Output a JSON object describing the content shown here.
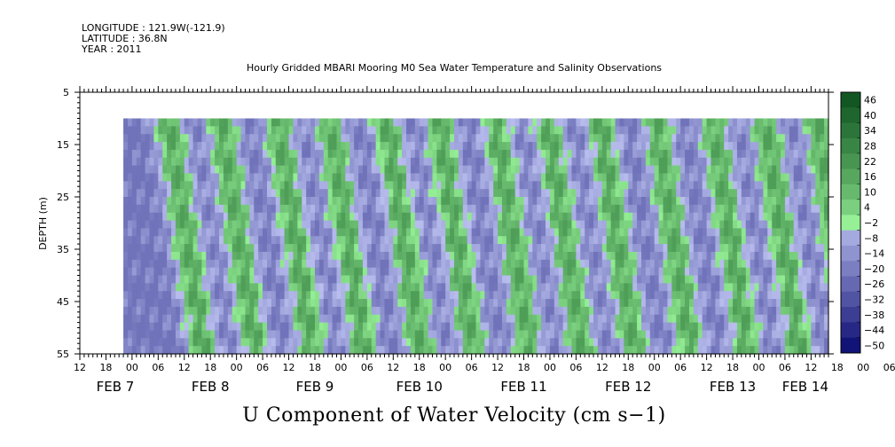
{
  "header": {
    "longitude": "LONGITUDE : 121.9W(-121.9)",
    "latitude": "LATITUDE : 36.8N",
    "year": "YEAR : 2011",
    "title": "Hourly Gridded MBARI Mooring M0 Sea Water Temperature and Salinity Observations"
  },
  "chart_data": {
    "type": "heatmap",
    "title": "Hourly Gridded MBARI Mooring M0 Sea Water Temperature and Salinity Observations",
    "xlabel": "U Component of Water Velocity (cm s−1)",
    "ylabel": "DEPTH (m)",
    "y_ticks": [
      "5",
      "15",
      "25",
      "35",
      "45",
      "55"
    ],
    "ylim": [
      55,
      5
    ],
    "y_data_range": [
      10,
      55
    ],
    "x_hour_ticks": [
      "12",
      "18",
      "00",
      "06",
      "12",
      "18",
      "00",
      "06",
      "12",
      "18",
      "00",
      "06",
      "12",
      "18",
      "00",
      "06",
      "12",
      "18",
      "00",
      "06",
      "12",
      "18",
      "00",
      "06",
      "12",
      "18",
      "00",
      "06",
      "12",
      "18",
      "00",
      "06"
    ],
    "x_date_labels": [
      "FEB  7",
      "FEB  8",
      "FEB  9",
      "FEB 10",
      "FEB 11",
      "FEB 12",
      "FEB 13",
      "FEB 14"
    ],
    "x_range_hours": [
      "2011-02-07 06:00",
      "2011-02-14 10:00"
    ],
    "data_start": "2011-02-07 16:00",
    "colorbar_levels": [
      "46",
      "40",
      "34",
      "28",
      "22",
      "16",
      "10",
      "4",
      "−2",
      "−8",
      "−14",
      "−20",
      "−26",
      "−32",
      "−38",
      "−44",
      "−50"
    ],
    "colorbar_range": [
      -50,
      52
    ],
    "approx_phase_times": [
      "2011-02-08 02:00",
      "2011-02-08 14:00",
      "2011-02-09 03:00",
      "2011-02-09 15:00",
      "2011-02-10 04:00",
      "2011-02-10 16:00",
      "2011-02-11 05:00",
      "2011-02-11 17:00",
      "2011-02-12 05:00",
      "2011-02-12 18:00",
      "2011-02-13 07:00",
      "2011-02-13 19:00",
      "2011-02-14 07:00"
    ],
    "value_range": [
      -20,
      22
    ],
    "grid": false,
    "legend": "colorbar right"
  }
}
